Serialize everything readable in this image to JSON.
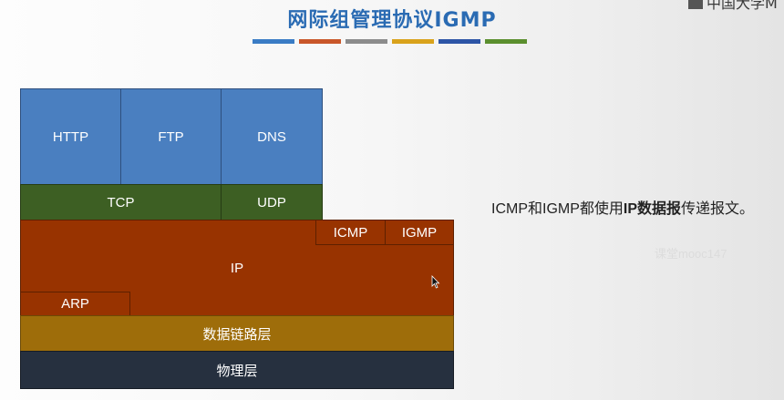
{
  "slide": {
    "title": "网际组管理协议IGMP",
    "title_bar_colors": [
      "#3a7cc5",
      "#c9572a",
      "#8c8c8c",
      "#d9a21b",
      "#2d55a6",
      "#5b8f2e"
    ],
    "logo_text": "中国大学M"
  },
  "diagram": {
    "application": {
      "http": "HTTP",
      "ftp": "FTP",
      "dns": "DNS"
    },
    "transport": {
      "tcp": "TCP",
      "udp": "UDP"
    },
    "network": {
      "ip": "IP",
      "icmp": "ICMP",
      "igmp": "IGMP",
      "arp": "ARP"
    },
    "data_link": "数据链路层",
    "physical": "物理层",
    "colors": {
      "application": "#4a7fc0",
      "transport": "#3d5f23",
      "network": "#983300",
      "data_link": "#9e6d0a",
      "physical": "#26303f"
    }
  },
  "note": {
    "part1": "ICMP和IGMP都使用",
    "bold": "IP数据报",
    "part2": "传递报文。"
  },
  "watermark": "课堂mooc147"
}
